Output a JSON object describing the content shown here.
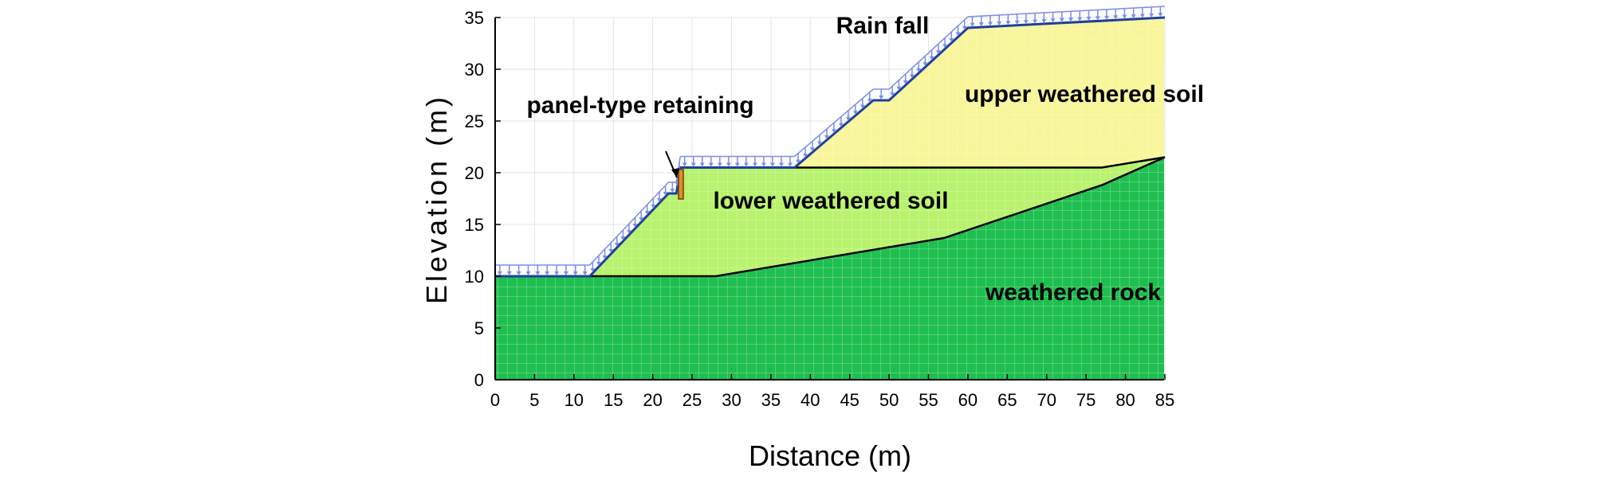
{
  "figure": {
    "rain_label": "Rain fall",
    "retaining_label": "panel-type retaining",
    "x_axis_title": "Distance (m)",
    "y_axis_title": "Elevation (m)",
    "x_ticks": [
      "0",
      "5",
      "10",
      "15",
      "20",
      "25",
      "30",
      "35",
      "40",
      "45",
      "50",
      "55",
      "60",
      "65",
      "70",
      "75",
      "80",
      "85"
    ],
    "y_ticks": [
      "0",
      "5",
      "10",
      "15",
      "20",
      "25",
      "30",
      "35"
    ]
  },
  "layers": {
    "upper": {
      "label": "upper weathered soil",
      "color": "#f8f59a"
    },
    "lower": {
      "label": "lower weathered soil",
      "color": "#b8f26e"
    },
    "rock": {
      "label": "weathered rock",
      "color": "#1fbf4f"
    }
  },
  "profile": {
    "ground_surface": [
      [
        0,
        10
      ],
      [
        12,
        10
      ],
      [
        22,
        18
      ],
      [
        23,
        18
      ],
      [
        23.5,
        20.5
      ],
      [
        38,
        20.5
      ],
      [
        48,
        27
      ],
      [
        50,
        27
      ],
      [
        60,
        34
      ],
      [
        85,
        35
      ]
    ],
    "lower_top": [
      [
        38,
        20.5
      ],
      [
        77,
        20.5
      ],
      [
        85,
        21.5
      ]
    ],
    "rock_top": [
      [
        0,
        10
      ],
      [
        12,
        10
      ],
      [
        28,
        10
      ],
      [
        57,
        13.7
      ],
      [
        77,
        18.8
      ],
      [
        85,
        21.5
      ]
    ]
  },
  "colors": {
    "boundary": "#000000",
    "surface": "#1f3f9e",
    "rain_arrow": "#7a8de8",
    "mesh": "#ffffff"
  }
}
